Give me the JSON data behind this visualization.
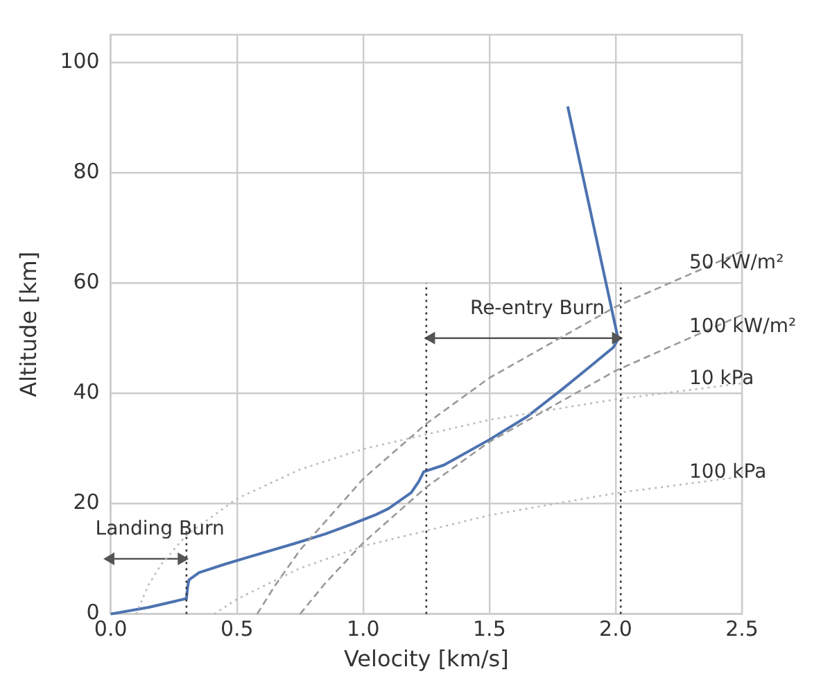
{
  "chart_data": {
    "type": "line",
    "xlabel": "Velocity [km/s]",
    "ylabel": "Altitude [km]",
    "xlim": [
      0,
      2.5
    ],
    "ylim": [
      0,
      105
    ],
    "xticks": [
      {
        "value": 0,
        "label": "0.0"
      },
      0.5,
      {
        "value": 1,
        "label": "1.0"
      },
      1.5,
      {
        "value": 2,
        "label": "2.0"
      },
      2.5
    ],
    "yticks": [
      0,
      20,
      40,
      60,
      80,
      100
    ],
    "grid": true,
    "series": [
      {
        "name": "50 kW/m²",
        "color": "#999999",
        "line_style": "dashed",
        "x": [
          0.58,
          0.65,
          0.75,
          1.0,
          1.25,
          1.5,
          2.0,
          2.5
        ],
        "values": [
          0,
          5.1,
          11.6,
          24.5,
          34.5,
          42.8,
          55.7,
          65.7
        ]
      },
      {
        "name": "100 kW/m²",
        "color": "#999999",
        "line_style": "dashed",
        "x": [
          0.75,
          0.85,
          1.0,
          1.25,
          1.5,
          2.0,
          2.5
        ],
        "values": [
          0,
          5.6,
          12.9,
          23.0,
          31.2,
          44.1,
          54.2
        ]
      },
      {
        "name": "10 kPa",
        "color": "#bbbbbb",
        "line_style": "dotted",
        "x": [
          0.1,
          0.15,
          0.2,
          0.3,
          0.5,
          0.75,
          1.0,
          1.5,
          2.0,
          2.5
        ],
        "values": [
          0,
          5.3,
          9.0,
          14.3,
          20.9,
          26.2,
          29.9,
          35.2,
          38.9,
          41.8
        ]
      },
      {
        "name": "100 kPa",
        "color": "#bbbbbb",
        "line_style": "dotted",
        "x": [
          0.41,
          0.5,
          0.75,
          1.0,
          1.5,
          2.0,
          2.5
        ],
        "values": [
          0,
          2.7,
          8.3,
          12.3,
          17.9,
          21.9,
          24.9
        ]
      },
      {
        "color": "#333333",
        "line_style": "dotted",
        "x": [
          0.3,
          0.3
        ],
        "values": [
          0,
          15
        ]
      },
      {
        "color": "#333333",
        "line_style": "dotted",
        "x": [
          1.25,
          1.25
        ],
        "values": [
          0,
          60
        ]
      },
      {
        "color": "#333333",
        "line_style": "dotted",
        "x": [
          2.02,
          2.02
        ],
        "values": [
          0,
          60
        ]
      },
      {
        "name": "Landing Burn",
        "color": "#555555",
        "line_style": "solid",
        "marker": "triangle",
        "x": [
          0.0,
          0.28
        ],
        "values": [
          10,
          10
        ]
      },
      {
        "name": "Re-entry Burn",
        "color": "#555555",
        "line_style": "solid",
        "marker": "triangle",
        "x": [
          1.27,
          2.0
        ],
        "values": [
          50,
          50
        ]
      },
      {
        "color": "#4c72b0",
        "line_style": "solid",
        "x": [
          0,
          0.15,
          0.3,
          0.305,
          0.31,
          0.35,
          0.45,
          0.545,
          0.73,
          0.85,
          0.95,
          1.05,
          1.1,
          1.19,
          1.22,
          1.24,
          1.32,
          1.5,
          1.65,
          1.79,
          1.9,
          1.99,
          2.01,
          1.81
        ],
        "values": [
          0,
          1.2,
          2.8,
          5,
          6.2,
          7.5,
          9.0,
          10.3,
          12.8,
          14.5,
          16.2,
          18,
          19.1,
          22,
          24,
          25.8,
          27,
          31.6,
          35.8,
          40.8,
          44.9,
          48.3,
          49.8,
          92
        ]
      }
    ]
  }
}
